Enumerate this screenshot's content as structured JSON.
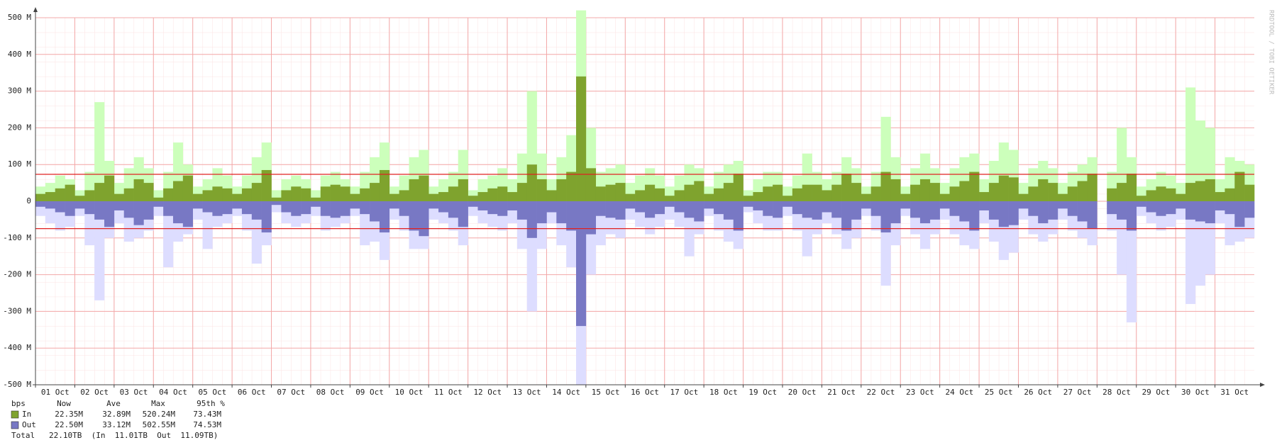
{
  "chart_data": {
    "type": "step-area",
    "watermark": "RRDTOOL / TOBI OETIKER",
    "xlim": [
      0,
      31
    ],
    "xticks": [
      {
        "value": 0,
        "label": "01 Oct"
      },
      {
        "value": 1,
        "label": "02 Oct"
      },
      {
        "value": 2,
        "label": "03 Oct"
      },
      {
        "value": 3,
        "label": "04 Oct"
      },
      {
        "value": 4,
        "label": "05 Oct"
      },
      {
        "value": 5,
        "label": "06 Oct"
      },
      {
        "value": 6,
        "label": "07 Oct"
      },
      {
        "value": 7,
        "label": "08 Oct"
      },
      {
        "value": 8,
        "label": "09 Oct"
      },
      {
        "value": 9,
        "label": "10 Oct"
      },
      {
        "value": 10,
        "label": "11 Oct"
      },
      {
        "value": 11,
        "label": "12 Oct"
      },
      {
        "value": 12,
        "label": "13 Oct"
      },
      {
        "value": 13,
        "label": "14 Oct"
      },
      {
        "value": 14,
        "label": "15 Oct"
      },
      {
        "value": 15,
        "label": "16 Oct"
      },
      {
        "value": 16,
        "label": "17 Oct"
      },
      {
        "value": 17,
        "label": "18 Oct"
      },
      {
        "value": 18,
        "label": "19 Oct"
      },
      {
        "value": 19,
        "label": "20 Oct"
      },
      {
        "value": 20,
        "label": "21 Oct"
      },
      {
        "value": 21,
        "label": "22 Oct"
      },
      {
        "value": 22,
        "label": "23 Oct"
      },
      {
        "value": 23,
        "label": "24 Oct"
      },
      {
        "value": 24,
        "label": "25 Oct"
      },
      {
        "value": 25,
        "label": "26 Oct"
      },
      {
        "value": 26,
        "label": "27 Oct"
      },
      {
        "value": 27,
        "label": "28 Oct"
      },
      {
        "value": 28,
        "label": "29 Oct"
      },
      {
        "value": 29,
        "label": "30 Oct"
      },
      {
        "value": 30,
        "label": "31 Oct"
      }
    ],
    "ylim": [
      -500,
      500
    ],
    "yticks": [
      {
        "value": 500,
        "label": "500 M"
      },
      {
        "value": 400,
        "label": "400 M"
      },
      {
        "value": 300,
        "label": "300 M"
      },
      {
        "value": 200,
        "label": "200 M"
      },
      {
        "value": 100,
        "label": "100 M"
      },
      0,
      {
        "value": -100,
        "label": "-100 M"
      },
      {
        "value": -200,
        "label": "-200 M"
      },
      {
        "value": -300,
        "label": "-300 M"
      },
      {
        "value": -400,
        "label": "-400 M"
      },
      {
        "value": -500,
        "label": "-500 M"
      }
    ],
    "grid": true,
    "percentile_lines": [
      73.43,
      -74.53
    ],
    "percentile_color": "#e02020",
    "x": [
      0,
      0.25,
      0.5,
      0.75,
      1,
      1.25,
      1.5,
      1.75,
      2,
      2.25,
      2.5,
      2.75,
      3,
      3.25,
      3.5,
      3.75,
      4,
      4.25,
      4.5,
      4.75,
      5,
      5.25,
      5.5,
      5.75,
      6,
      6.25,
      6.5,
      6.75,
      7,
      7.25,
      7.5,
      7.75,
      8,
      8.25,
      8.5,
      8.75,
      9,
      9.25,
      9.5,
      9.75,
      10,
      10.25,
      10.5,
      10.75,
      11,
      11.25,
      11.5,
      11.75,
      12,
      12.25,
      12.5,
      12.75,
      13,
      13.25,
      13.5,
      13.75,
      14,
      14.25,
      14.5,
      14.75,
      15,
      15.25,
      15.5,
      15.75,
      16,
      16.25,
      16.5,
      16.75,
      17,
      17.25,
      17.5,
      17.75,
      18,
      18.25,
      18.5,
      18.75,
      19,
      19.25,
      19.5,
      19.75,
      20,
      20.25,
      20.5,
      20.75,
      21,
      21.25,
      21.5,
      21.75,
      22,
      22.25,
      22.5,
      22.75,
      23,
      23.25,
      23.5,
      23.75,
      24,
      24.25,
      24.5,
      24.75,
      25,
      25.25,
      25.5,
      25.75,
      26,
      26.25,
      26.5,
      26.75,
      27,
      27.25,
      27.5,
      27.75,
      28,
      28.25,
      28.5,
      28.75,
      29,
      29.25,
      29.5,
      29.75,
      30,
      30.25,
      30.5,
      30.75
    ],
    "series": [
      {
        "color": "#ccffbb",
        "values": [
          40,
          50,
          70,
          60,
          30,
          80,
          270,
          110,
          50,
          90,
          120,
          90,
          30,
          80,
          160,
          100,
          40,
          60,
          90,
          70,
          40,
          70,
          120,
          160,
          30,
          60,
          70,
          60,
          30,
          70,
          80,
          60,
          40,
          80,
          120,
          160,
          40,
          70,
          120,
          140,
          40,
          60,
          80,
          140,
          30,
          60,
          70,
          90,
          60,
          130,
          300,
          130,
          60,
          120,
          180,
          520,
          200,
          80,
          90,
          100,
          50,
          70,
          90,
          70,
          40,
          70,
          100,
          90,
          40,
          80,
          100,
          110,
          30,
          60,
          80,
          80,
          40,
          70,
          130,
          80,
          60,
          80,
          120,
          90,
          40,
          80,
          230,
          120,
          40,
          90,
          130,
          90,
          50,
          90,
          120,
          130,
          60,
          110,
          160,
          140,
          50,
          90,
          110,
          90,
          50,
          80,
          100,
          120,
          null,
          80,
          200,
          120,
          40,
          60,
          80,
          70,
          50,
          310,
          220,
          200,
          60,
          120,
          110,
          100
        ]
      },
      {
        "color": "#ddddff",
        "values": [
          -40,
          -60,
          -80,
          -70,
          -40,
          -120,
          -270,
          -100,
          -60,
          -110,
          -100,
          -80,
          -40,
          -180,
          -110,
          -90,
          -50,
          -130,
          -70,
          -60,
          -40,
          -80,
          -170,
          -120,
          -30,
          -60,
          -70,
          -60,
          -40,
          -80,
          -70,
          -60,
          -40,
          -120,
          -110,
          -160,
          -50,
          -80,
          -130,
          -130,
          -50,
          -60,
          -80,
          -120,
          -40,
          -60,
          -70,
          -80,
          -60,
          -130,
          -300,
          -130,
          -60,
          -120,
          -180,
          -500,
          -200,
          -120,
          -90,
          -100,
          -50,
          -70,
          -90,
          -70,
          -50,
          -70,
          -150,
          -90,
          -40,
          -80,
          -110,
          -130,
          -30,
          -60,
          -80,
          -80,
          -40,
          -80,
          -150,
          -90,
          -60,
          -90,
          -130,
          -100,
          -40,
          -80,
          -230,
          -120,
          -40,
          -90,
          -130,
          -90,
          -50,
          -90,
          -120,
          -130,
          -60,
          -110,
          -160,
          -140,
          -50,
          -90,
          -110,
          -90,
          -50,
          -80,
          -100,
          -120,
          null,
          -80,
          -200,
          -330,
          -40,
          -60,
          -80,
          -70,
          -50,
          -280,
          -230,
          -200,
          -60,
          -120,
          -110,
          -100
        ]
      },
      {
        "name": "In",
        "color": "#7fa32e",
        "values": [
          20,
          25,
          35,
          45,
          15,
          30,
          50,
          70,
          20,
          35,
          60,
          50,
          10,
          35,
          55,
          70,
          20,
          30,
          40,
          35,
          20,
          35,
          50,
          85,
          10,
          30,
          40,
          35,
          10,
          40,
          45,
          40,
          20,
          35,
          50,
          85,
          20,
          30,
          60,
          70,
          20,
          25,
          40,
          60,
          15,
          25,
          35,
          40,
          25,
          50,
          100,
          60,
          30,
          60,
          80,
          340,
          90,
          40,
          45,
          50,
          20,
          30,
          45,
          35,
          15,
          30,
          45,
          55,
          20,
          35,
          50,
          75,
          15,
          25,
          40,
          45,
          15,
          35,
          45,
          45,
          30,
          45,
          75,
          50,
          20,
          40,
          80,
          60,
          20,
          45,
          60,
          50,
          20,
          40,
          55,
          80,
          25,
          50,
          70,
          65,
          20,
          40,
          60,
          50,
          20,
          40,
          55,
          75,
          null,
          35,
          50,
          75,
          15,
          30,
          40,
          35,
          20,
          50,
          55,
          60,
          25,
          35,
          80,
          45
        ]
      },
      {
        "name": "Out",
        "color": "#7878c4",
        "values": [
          -15,
          -20,
          -30,
          -40,
          -20,
          -35,
          -50,
          -70,
          -25,
          -45,
          -65,
          -50,
          -15,
          -40,
          -60,
          -70,
          -20,
          -30,
          -40,
          -35,
          -20,
          -35,
          -50,
          -85,
          -10,
          -30,
          -40,
          -35,
          -15,
          -40,
          -45,
          -40,
          -20,
          -35,
          -55,
          -85,
          -20,
          -40,
          -80,
          -95,
          -20,
          -30,
          -45,
          -70,
          -15,
          -25,
          -35,
          -40,
          -25,
          -50,
          -100,
          -60,
          -30,
          -60,
          -80,
          -340,
          -90,
          -40,
          -45,
          -50,
          -20,
          -30,
          -45,
          -35,
          -15,
          -30,
          -45,
          -55,
          -20,
          -35,
          -50,
          -80,
          -15,
          -25,
          -40,
          -45,
          -15,
          -35,
          -45,
          -50,
          -30,
          -45,
          -80,
          -50,
          -20,
          -40,
          -85,
          -60,
          -20,
          -45,
          -60,
          -50,
          -20,
          -40,
          -55,
          -80,
          -25,
          -50,
          -70,
          -65,
          -20,
          -40,
          -60,
          -50,
          -20,
          -40,
          -55,
          -75,
          null,
          -35,
          -50,
          -80,
          -15,
          -30,
          -40,
          -35,
          -20,
          -50,
          -55,
          -60,
          -25,
          -35,
          -70,
          -45
        ]
      }
    ],
    "legend": {
      "header": [
        "bps",
        "Now",
        "Ave",
        "Max",
        "95th %"
      ],
      "rows": [
        [
          "22.35M",
          "32.89M",
          "520.24M",
          "73.43M"
        ],
        [
          "22.50M",
          "33.12M",
          "502.55M",
          "74.53M"
        ]
      ],
      "total": "Total   22.10TB  (In  11.01TB  Out  11.09TB)"
    }
  }
}
